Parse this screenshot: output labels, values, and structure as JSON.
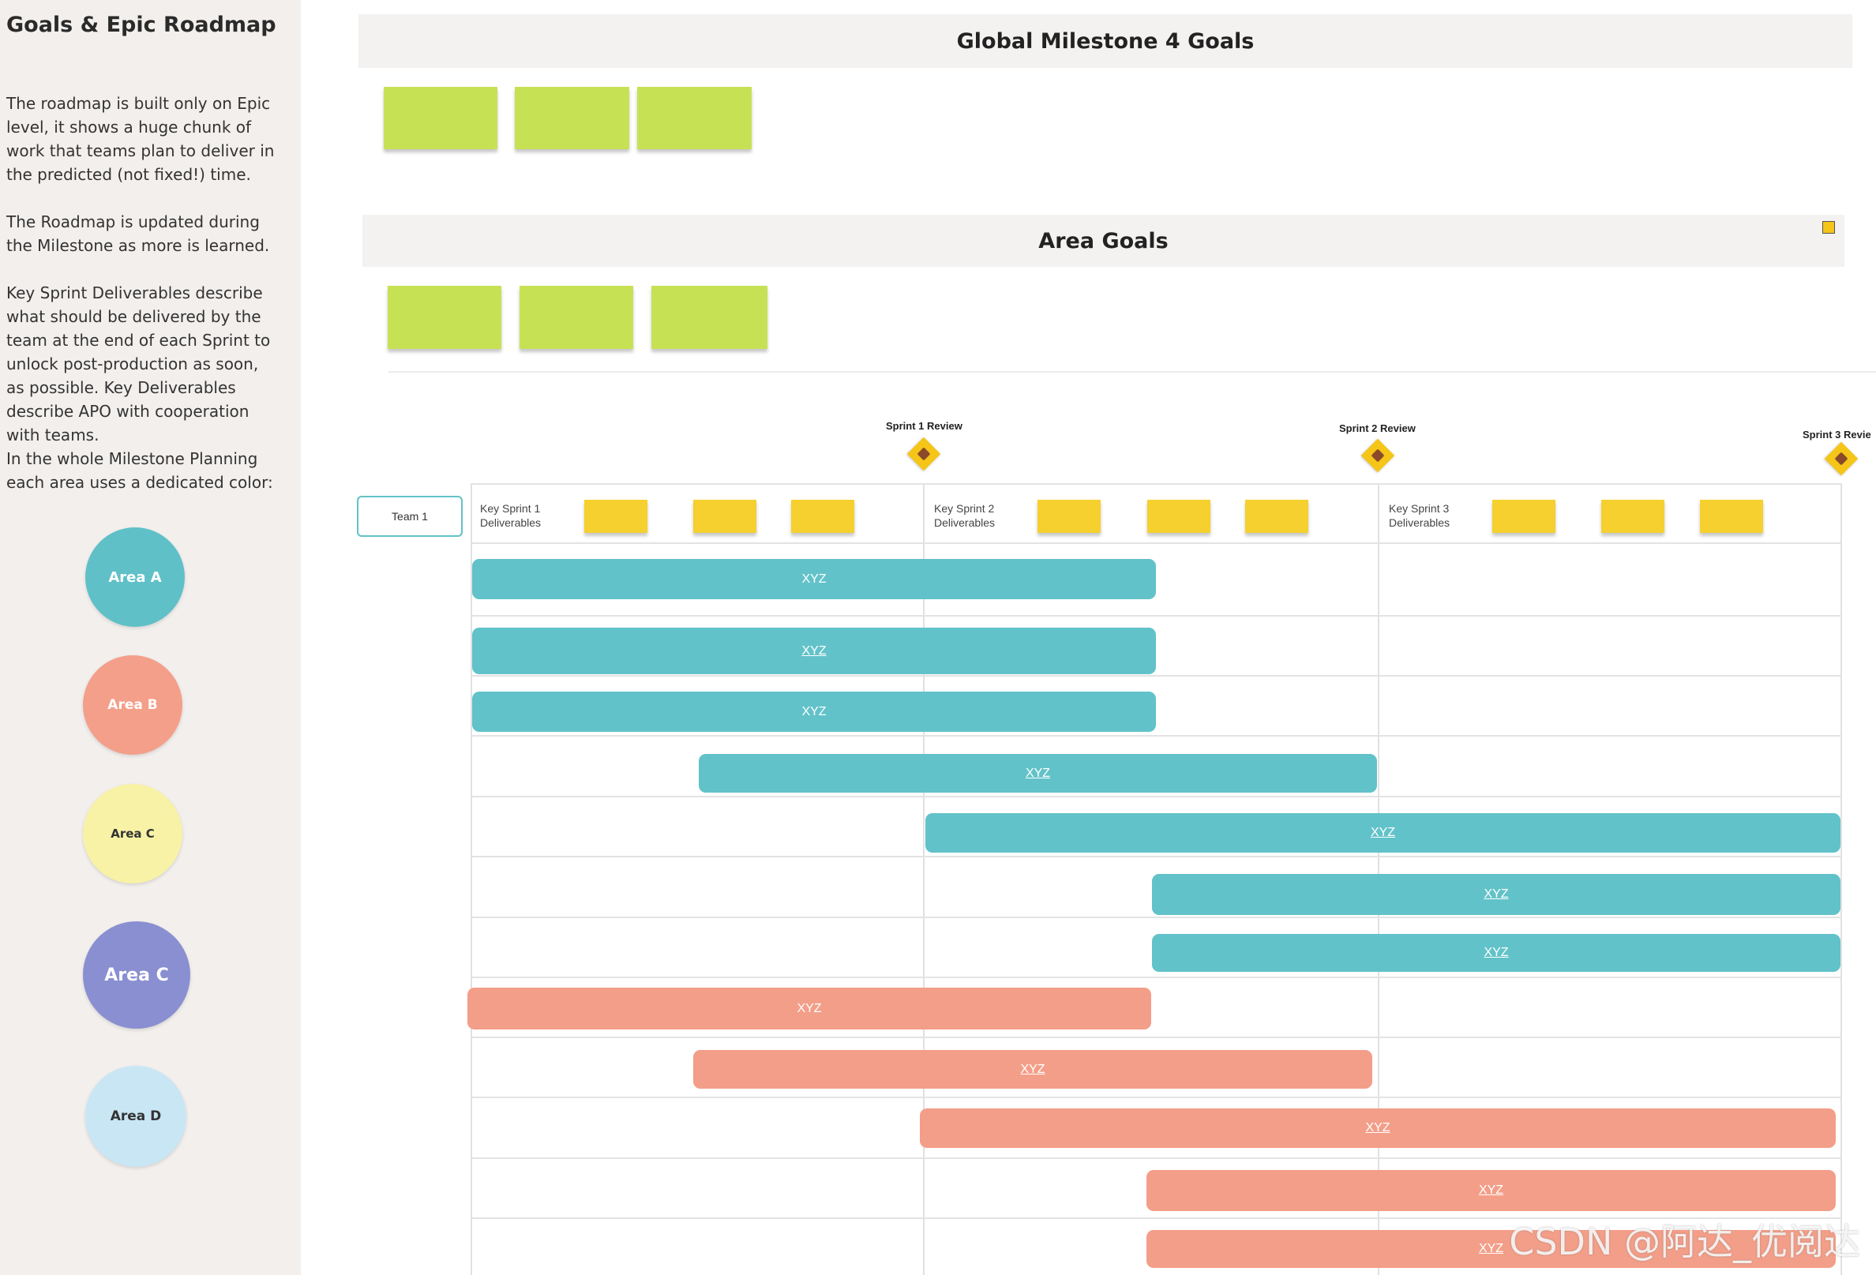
{
  "sidebar": {
    "title": "Goals & Epic Roadmap",
    "paragraphs": [
      "The roadmap is built only on Epic level, it shows a huge chunk of work that teams plan to deliver in the predicted (not fixed!) time.",
      "The Roadmap is updated during the Milestone as more is learned.",
      "Key Sprint Deliverables describe what should be delivered by the team at the end of each Sprint to unlock post-production as soon, as possible. Key Deliverables describe APO with cooperation with teams.",
      "In the whole Milestone Planning each area uses a dedicated color:"
    ],
    "areas": [
      {
        "label": "Area A",
        "color": "#5fc0c8"
      },
      {
        "label": "Area B",
        "color": "#f49f8a"
      },
      {
        "label": "Area C",
        "color": "#f8f2a6"
      },
      {
        "label": "Area C",
        "color": "#8a8fd1"
      },
      {
        "label": "Area D",
        "color": "#c9e6f5"
      }
    ]
  },
  "goals": {
    "global_title": "Global Milestone 4 Goals",
    "area_title": "Area Goals"
  },
  "roadmap": {
    "team_label": "Team 1",
    "sprints": [
      {
        "deliverables": "Key Sprint 1 Deliverables",
        "review": "Sprint 1 Review"
      },
      {
        "deliverables": "Key Sprint 2 Deliverables",
        "review": "Sprint 2 Review"
      },
      {
        "deliverables": "Key Sprint 3 Deliverables",
        "review": "Sprint 3 Revie"
      }
    ],
    "epic_label": "XYZ",
    "colors": {
      "area_a": "#62c2c9",
      "area_b": "#f39e88",
      "sticky_goal": "#c7e155",
      "sticky_deliverable": "#f5d02f",
      "milestone": "#f5c518"
    }
  },
  "watermark": "CSDN @阿达_优阅达"
}
